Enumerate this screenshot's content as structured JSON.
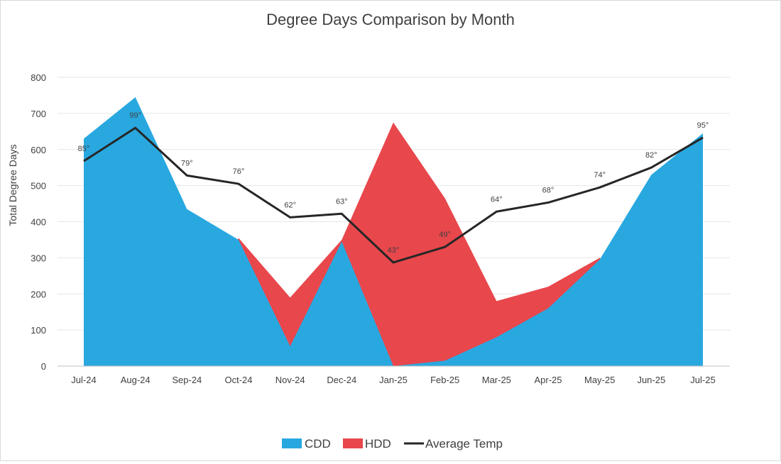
{
  "chart_data": {
    "type": "area",
    "title": "Degree Days Comparison by Month",
    "xlabel": "",
    "ylabel": "Total Degree Days",
    "ylim": [
      0,
      800
    ],
    "yticks": [
      0,
      100,
      200,
      300,
      400,
      500,
      600,
      700,
      800
    ],
    "grid": true,
    "legend_position": "bottom",
    "categories": [
      "Jul-24",
      "Aug-24",
      "Sep-24",
      "Oct-24",
      "Nov-24",
      "Dec-24",
      "Jan-25",
      "Feb-25",
      "Mar-25",
      "Apr-25",
      "May-25",
      "Jun-25",
      "Jul-25"
    ],
    "series": [
      {
        "name": "CDD",
        "kind": "area",
        "color": "#29a8e0",
        "values": [
          630,
          745,
          435,
          350,
          55,
          345,
          0,
          15,
          80,
          160,
          295,
          530,
          645
        ]
      },
      {
        "name": "HDD",
        "kind": "area",
        "color": "#e8474c",
        "values": [
          0,
          0,
          0,
          355,
          190,
          350,
          675,
          465,
          180,
          220,
          300,
          0,
          0
        ]
      },
      {
        "name": "Average Temp",
        "kind": "line",
        "color": "#262626",
        "values": [
          568,
          660,
          528,
          505,
          412,
          422,
          287,
          330,
          428,
          453,
          495,
          550,
          633
        ],
        "labels": [
          "85°",
          "99°",
          "79°",
          "76°",
          "62°",
          "63°",
          "43°",
          "49°",
          "64°",
          "68°",
          "74°",
          "82°",
          "95°"
        ]
      }
    ]
  }
}
